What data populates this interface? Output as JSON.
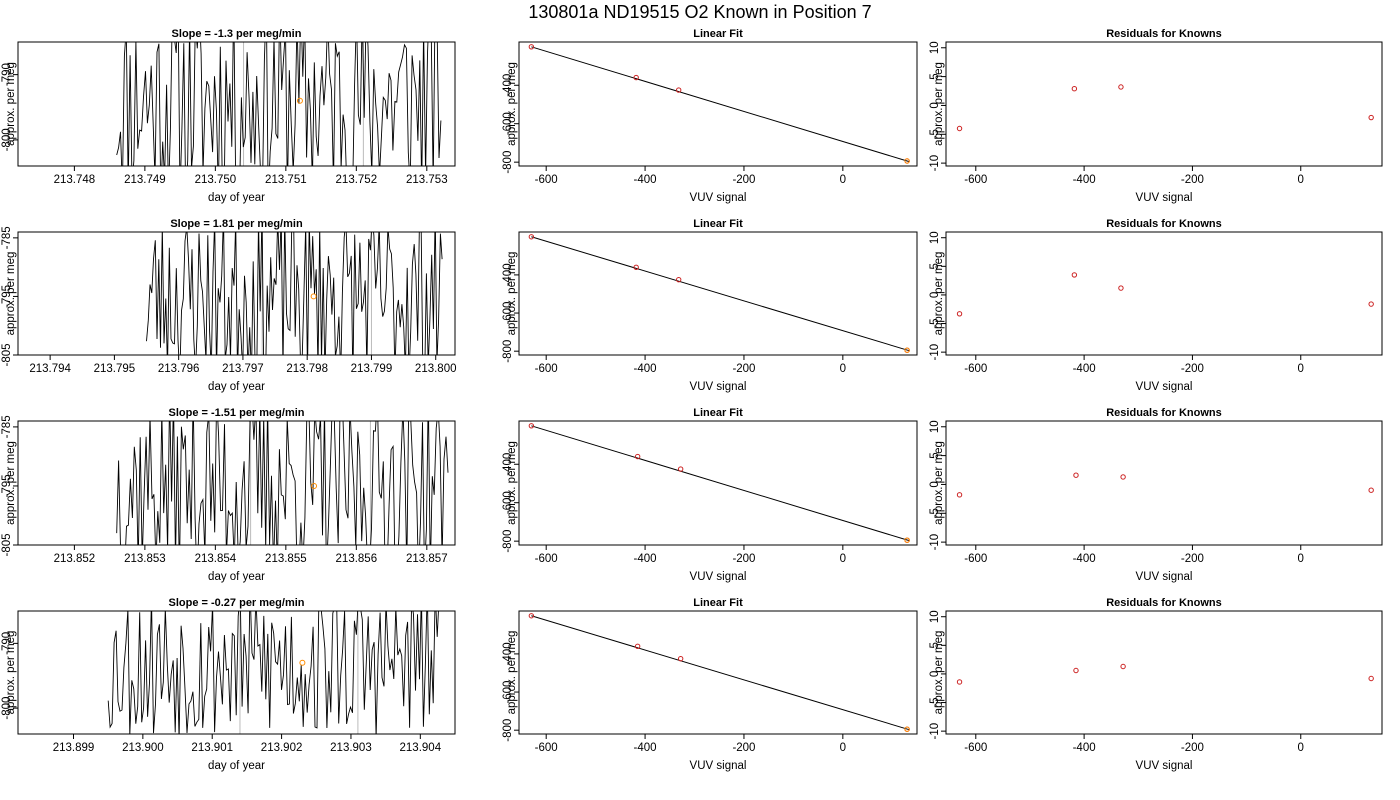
{
  "page_title": "130801a     ND19515   O2 Known in Position  7",
  "colors": {
    "series_line": "#000000",
    "known_marker": "#cc2222",
    "highlight_marker": "#ff8c00",
    "vertical_marker": "#bbbbbb"
  },
  "chart_data": [
    {
      "type": "line",
      "row": 1,
      "title": "Slope =  -1.3  per meg/min",
      "xlabel": "day of year",
      "ylabel": "approx. per meg",
      "xlim": [
        213.7472,
        213.7534
      ],
      "ylim": [
        -804,
        -785
      ],
      "xticks": [
        213.748,
        213.749,
        213.75,
        213.751,
        213.752,
        213.753
      ],
      "xtick_labels": [
        "213.748",
        "213.749",
        "213.750",
        "213.751",
        "213.752",
        "213.753"
      ],
      "yticks": [
        -790,
        -800
      ],
      "ytick_labels": [
        "-790",
        "-800"
      ],
      "vlines": [
        213.7504,
        213.7521
      ],
      "highlight": {
        "x": 213.7512,
        "y": -794
      },
      "data_x_range": [
        213.7486,
        213.7532
      ],
      "y_center": -794,
      "y_amp": 16,
      "seed": 11
    },
    {
      "type": "scatter",
      "row": 1,
      "title": "Linear Fit",
      "xlabel": "VUV signal",
      "ylabel": "approx. per meg",
      "xlim": [
        -655,
        150
      ],
      "ylim": [
        -820,
        -175
      ],
      "xticks": [
        -600,
        -400,
        -200,
        0
      ],
      "xtick_labels": [
        "-600",
        "-400",
        "-200",
        "0"
      ],
      "yticks": [
        -400,
        -600,
        -800
      ],
      "ytick_labels": [
        "-400",
        "-600",
        "-800"
      ],
      "points": [
        {
          "x": -630,
          "y": -200
        },
        {
          "x": -418,
          "y": -360
        },
        {
          "x": -332,
          "y": -425
        },
        {
          "x": 130,
          "y": -794
        }
      ],
      "fit_line": [
        {
          "x": -630,
          "y": -200
        },
        {
          "x": 135,
          "y": -798
        }
      ],
      "highlight": {
        "x": 130,
        "y": -794
      }
    },
    {
      "type": "scatter",
      "row": 1,
      "title": "Residuals for Knowns",
      "xlabel": "VUV signal",
      "ylabel": "approx. per meg",
      "xlim": [
        -655,
        150
      ],
      "ylim": [
        -10.5,
        11
      ],
      "xticks": [
        -600,
        -400,
        -200,
        0
      ],
      "xtick_labels": [
        "-600",
        "-400",
        "-200",
        "0"
      ],
      "yticks": [
        10,
        5,
        0,
        -5,
        -10
      ],
      "ytick_labels": [
        "10",
        "5",
        "0",
        "-5",
        "-10"
      ],
      "points": [
        {
          "x": -630,
          "y": -4
        },
        {
          "x": -418,
          "y": 2.9
        },
        {
          "x": -332,
          "y": 3.2
        },
        {
          "x": 130,
          "y": -2.1
        }
      ]
    },
    {
      "type": "line",
      "row": 2,
      "title": "Slope =  1.81  per meg/min",
      "xlabel": "day of year",
      "ylabel": "approx. per meg",
      "xlim": [
        213.7935,
        213.8003
      ],
      "ylim": [
        -805,
        -784
      ],
      "xticks": [
        213.794,
        213.795,
        213.796,
        213.797,
        213.798,
        213.799,
        213.8
      ],
      "xtick_labels": [
        "213.794",
        "213.795",
        "213.796",
        "213.797",
        "213.798",
        "213.799",
        "213.800"
      ],
      "yticks": [
        -785,
        -795,
        -805
      ],
      "ytick_labels": [
        "-785",
        "-795",
        "-805"
      ],
      "vlines": [
        213.7973,
        213.799
      ],
      "highlight": {
        "x": 213.7981,
        "y": -795
      },
      "data_x_range": [
        213.7955,
        213.8001
      ],
      "y_center": -795,
      "y_amp": 15,
      "seed": 23
    },
    {
      "type": "scatter",
      "row": 2,
      "title": "Linear Fit",
      "xlabel": "VUV signal",
      "ylabel": "approx. per meg",
      "xlim": [
        -655,
        150
      ],
      "ylim": [
        -820,
        -175
      ],
      "xticks": [
        -600,
        -400,
        -200,
        0
      ],
      "xtick_labels": [
        "-600",
        "-400",
        "-200",
        "0"
      ],
      "yticks": [
        -400,
        -600,
        -800
      ],
      "ytick_labels": [
        "-400",
        "-600",
        "-800"
      ],
      "points": [
        {
          "x": -630,
          "y": -200
        },
        {
          "x": -418,
          "y": -360
        },
        {
          "x": -332,
          "y": -425
        },
        {
          "x": 130,
          "y": -795
        }
      ],
      "fit_line": [
        {
          "x": -630,
          "y": -200
        },
        {
          "x": 135,
          "y": -798
        }
      ],
      "highlight": {
        "x": 130,
        "y": -795
      }
    },
    {
      "type": "scatter",
      "row": 2,
      "title": "Residuals for Knowns",
      "xlabel": "VUV signal",
      "ylabel": "approx. per meg",
      "xlim": [
        -655,
        150
      ],
      "ylim": [
        -10.5,
        11
      ],
      "xticks": [
        -600,
        -400,
        -200,
        0
      ],
      "xtick_labels": [
        "-600",
        "-400",
        "-200",
        "0"
      ],
      "yticks": [
        10,
        5,
        0,
        -5,
        -10
      ],
      "ytick_labels": [
        "10",
        "5",
        "0",
        "-5",
        "-10"
      ],
      "points": [
        {
          "x": -630,
          "y": -3.3
        },
        {
          "x": -418,
          "y": 3.5
        },
        {
          "x": -332,
          "y": 1.2
        },
        {
          "x": 130,
          "y": -1.6
        }
      ]
    },
    {
      "type": "line",
      "row": 3,
      "title": "Slope =  -1.51  per meg/min",
      "xlabel": "day of year",
      "ylabel": "approx. per meg",
      "xlim": [
        213.8512,
        213.8574
      ],
      "ylim": [
        -805,
        -784
      ],
      "xticks": [
        213.852,
        213.853,
        213.854,
        213.855,
        213.856,
        213.857
      ],
      "xtick_labels": [
        "213.852",
        "213.853",
        "213.854",
        "213.855",
        "213.856",
        "213.857"
      ],
      "yticks": [
        -785,
        -795,
        -805
      ],
      "ytick_labels": [
        "-785",
        "-795",
        "-805"
      ],
      "vlines": [
        213.8545,
        213.8562
      ],
      "highlight": {
        "x": 213.8554,
        "y": -795
      },
      "data_x_range": [
        213.8526,
        213.8573
      ],
      "y_center": -795,
      "y_amp": 16,
      "seed": 37
    },
    {
      "type": "scatter",
      "row": 3,
      "title": "Linear Fit",
      "xlabel": "VUV signal",
      "ylabel": "approx. per meg",
      "xlim": [
        -655,
        150
      ],
      "ylim": [
        -820,
        -175
      ],
      "xticks": [
        -600,
        -400,
        -200,
        0
      ],
      "xtick_labels": [
        "-600",
        "-400",
        "-200",
        "0"
      ],
      "yticks": [
        -400,
        -600,
        -800
      ],
      "ytick_labels": [
        "-400",
        "-600",
        "-800"
      ],
      "points": [
        {
          "x": -630,
          "y": -200
        },
        {
          "x": -415,
          "y": -360
        },
        {
          "x": -328,
          "y": -425
        },
        {
          "x": 130,
          "y": -795
        }
      ],
      "fit_line": [
        {
          "x": -630,
          "y": -200
        },
        {
          "x": 135,
          "y": -798
        }
      ],
      "highlight": {
        "x": 130,
        "y": -795
      }
    },
    {
      "type": "scatter",
      "row": 3,
      "title": "Residuals for Knowns",
      "xlabel": "VUV signal",
      "ylabel": "approx. per meg",
      "xlim": [
        -655,
        150
      ],
      "ylim": [
        -10.5,
        11
      ],
      "xticks": [
        -600,
        -400,
        -200,
        0
      ],
      "xtick_labels": [
        "-600",
        "-400",
        "-200",
        "0"
      ],
      "yticks": [
        10,
        5,
        0,
        -5,
        -10
      ],
      "ytick_labels": [
        "10",
        "5",
        "0",
        "-5",
        "-10"
      ],
      "points": [
        {
          "x": -630,
          "y": -1.8
        },
        {
          "x": -415,
          "y": 1.6
        },
        {
          "x": -328,
          "y": 1.3
        },
        {
          "x": 130,
          "y": -1
        }
      ]
    },
    {
      "type": "line",
      "row": 4,
      "title": "Slope =  -0.27  per meg/min",
      "xlabel": "day of year",
      "ylabel": "approx. per meg",
      "xlim": [
        213.8982,
        213.9045
      ],
      "ylim": [
        -804,
        -785
      ],
      "xticks": [
        213.899,
        213.9,
        213.901,
        213.902,
        213.903,
        213.904
      ],
      "xtick_labels": [
        "213.899",
        "213.900",
        "213.901",
        "213.902",
        "213.903",
        "213.904"
      ],
      "yticks": [
        -790,
        -800
      ],
      "ytick_labels": [
        "-790",
        "-800"
      ],
      "vlines": [
        213.9014,
        213.9031
      ],
      "highlight": {
        "x": 213.9023,
        "y": -793
      },
      "data_x_range": [
        213.8995,
        213.9043
      ],
      "y_center": -793,
      "y_amp": 12,
      "seed": 53
    },
    {
      "type": "scatter",
      "row": 4,
      "title": "Linear Fit",
      "xlabel": "VUV signal",
      "ylabel": "approx. per meg",
      "xlim": [
        -655,
        150
      ],
      "ylim": [
        -820,
        -175
      ],
      "xticks": [
        -600,
        -400,
        -200,
        0
      ],
      "xtick_labels": [
        "-600",
        "-400",
        "-200",
        "0"
      ],
      "yticks": [
        -400,
        -600,
        -800
      ],
      "ytick_labels": [
        "-400",
        "-600",
        "-800"
      ],
      "points": [
        {
          "x": -630,
          "y": -200
        },
        {
          "x": -415,
          "y": -360
        },
        {
          "x": -328,
          "y": -425
        },
        {
          "x": 130,
          "y": -795
        }
      ],
      "fit_line": [
        {
          "x": -630,
          "y": -200
        },
        {
          "x": 135,
          "y": -798
        }
      ],
      "highlight": {
        "x": 130,
        "y": -795
      }
    },
    {
      "type": "scatter",
      "row": 4,
      "title": "Residuals for Knowns",
      "xlabel": "VUV signal",
      "ylabel": "approx. per meg",
      "xlim": [
        -655,
        150
      ],
      "ylim": [
        -10.5,
        11
      ],
      "xticks": [
        -600,
        -400,
        -200,
        0
      ],
      "xtick_labels": [
        "-600",
        "-400",
        "-200",
        "0"
      ],
      "yticks": [
        10,
        5,
        0,
        -5,
        -10
      ],
      "ytick_labels": [
        "10",
        "5",
        "0",
        "-5",
        "-10"
      ],
      "points": [
        {
          "x": -630,
          "y": -1.4
        },
        {
          "x": -415,
          "y": 0.6
        },
        {
          "x": -328,
          "y": 1.3
        },
        {
          "x": 130,
          "y": -0.8
        }
      ]
    }
  ]
}
